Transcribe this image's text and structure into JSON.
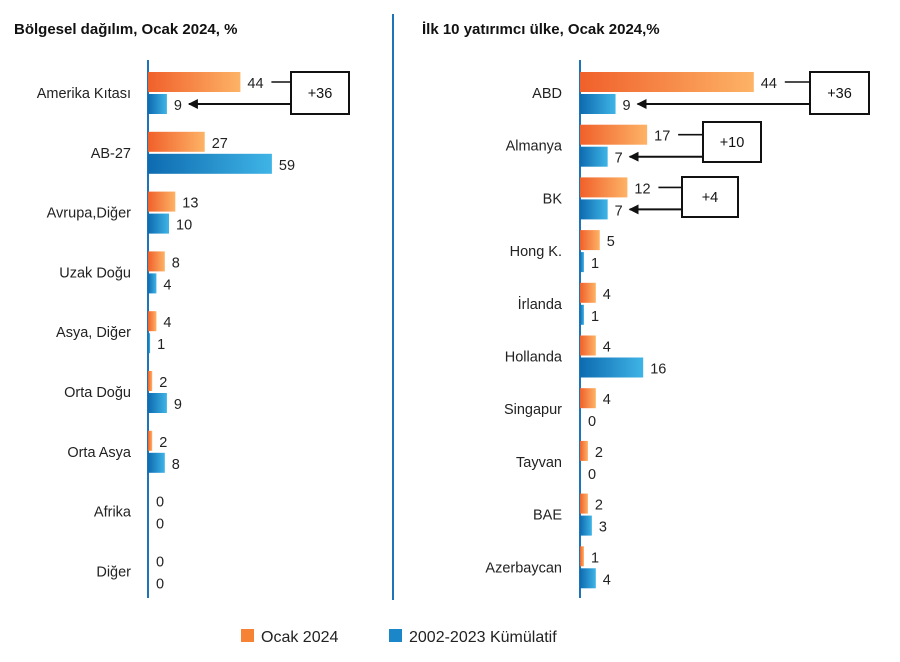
{
  "colors": {
    "ocak_light": "#FDB366",
    "ocak_dark": "#F0602A",
    "kum_light": "#3FB4E6",
    "kum_dark": "#0D6BB0",
    "axis": "#1D74B8",
    "divider": "#1D74B8",
    "text": "#222222"
  },
  "legend": [
    {
      "key": "ocak",
      "label": "Ocak 2024"
    },
    {
      "key": "kum",
      "label": "2002-2023 Kümülatif"
    }
  ],
  "chart_data": [
    {
      "type": "bar",
      "orientation": "horizontal",
      "title": "Bölgesel dağılım, Ocak 2024, %",
      "categories": [
        "Amerika Kıtası",
        "AB-27",
        "Avrupa,Diğer",
        "Uzak Doğu",
        "Asya, Diğer",
        "Orta Doğu",
        "Orta Asya",
        "Afrika",
        "Diğer"
      ],
      "series": [
        {
          "name": "Ocak 2024",
          "key": "ocak",
          "values": [
            44,
            27,
            13,
            8,
            4,
            2,
            2,
            0,
            0
          ]
        },
        {
          "name": "2002-2023 Kümülatif",
          "key": "kum",
          "values": [
            9,
            59,
            10,
            4,
            1,
            9,
            8,
            0,
            0
          ]
        }
      ],
      "annotations": [
        {
          "category_index": 0,
          "text": "+36"
        }
      ]
    },
    {
      "type": "bar",
      "orientation": "horizontal",
      "title": "İlk 10 yatırımcı ülke, Ocak 2024,%",
      "categories": [
        "ABD",
        "Almanya",
        "BK",
        "Hong K.",
        "İrlanda",
        "Hollanda",
        "Singapur",
        "Tayvan",
        "BAE",
        "Azerbaycan"
      ],
      "series": [
        {
          "name": "Ocak 2024",
          "key": "ocak",
          "values": [
            44,
            17,
            12,
            5,
            4,
            4,
            4,
            2,
            2,
            1
          ]
        },
        {
          "name": "2002-2023 Kümülatif",
          "key": "kum",
          "values": [
            9,
            7,
            7,
            1,
            1,
            16,
            0,
            0,
            3,
            4
          ]
        }
      ],
      "annotations": [
        {
          "category_index": 0,
          "text": "+36"
        },
        {
          "category_index": 1,
          "text": "+10"
        },
        {
          "category_index": 2,
          "text": "+4"
        }
      ]
    }
  ]
}
